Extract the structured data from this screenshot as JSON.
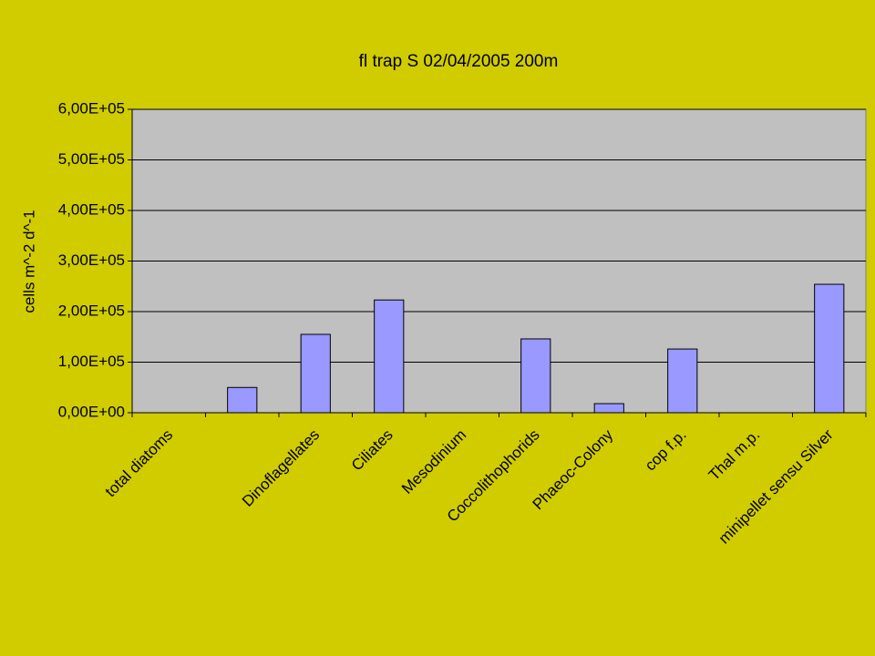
{
  "chart_data": {
    "type": "bar",
    "title": "fl trap S 02/04/2005 200m",
    "y_label": "cells m^-2 d^-1",
    "categories": [
      "total diatoms",
      null,
      "Dinoflagellates",
      "Ciliates",
      "Mesodinium",
      "Coccolithophorids",
      "Phaeoc-Colony",
      "cop f.p.",
      "Thal m.p.",
      "minipellet sensu Silver"
    ],
    "values": [
      0,
      50000,
      155000,
      223000,
      0,
      146000,
      18000,
      126000,
      0,
      254000
    ],
    "color": "#9999ff",
    "ylim": [
      0,
      600000
    ],
    "yticks": [
      {
        "value": 0,
        "label": "0,00E+00"
      },
      {
        "value": 100000,
        "label": "1,00E+05"
      },
      {
        "value": 200000,
        "label": "2,00E+05"
      },
      {
        "value": 300000,
        "label": "3,00E+05"
      },
      {
        "value": 400000,
        "label": "4,00E+05"
      },
      {
        "value": 500000,
        "label": "5,00E+05"
      },
      {
        "value": 600000,
        "label": "6,00E+05"
      }
    ],
    "grid": true
  }
}
